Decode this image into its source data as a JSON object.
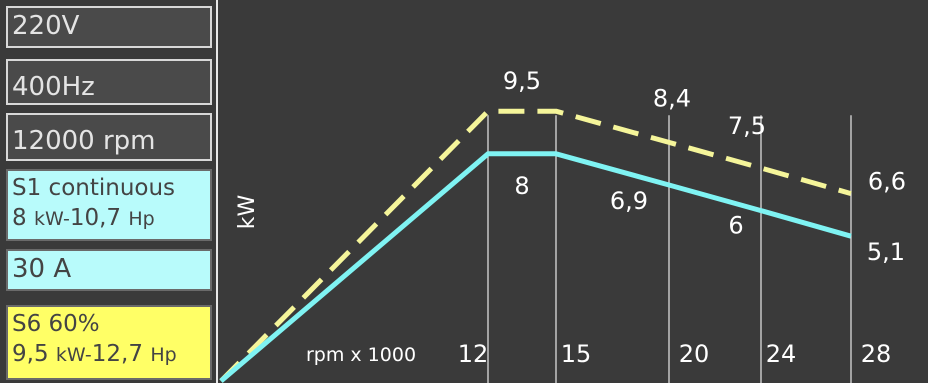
{
  "specs": {
    "voltage": "220V",
    "frequency": "400Hz",
    "speed": "12000 rpm",
    "s1_title": "S1 continuous",
    "s1_power_kw": "8",
    "s1_kw_unit": "kW-",
    "s1_power_hp": "10,7",
    "s1_hp_unit": "Hp",
    "current": "30 A",
    "s6_title": "S6 60%",
    "s6_power_kw": "9,5",
    "s6_kw_unit": "kW-",
    "s6_power_hp": "12,7",
    "s6_hp_unit": "Hp"
  },
  "colors": {
    "background": "#3a3a3a",
    "s1_fill": "#b8fbfb",
    "s6_fill": "#ffff66",
    "s1_line": "#7ff3f3",
    "s6_line": "#f5f59a",
    "grid": "#e8e8e8"
  },
  "chart_data": {
    "type": "line",
    "ylabel": "kW",
    "xlabel": "rpm x 1000",
    "x_ticks": [
      "12",
      "15",
      "20",
      "24",
      "28"
    ],
    "xlim": [
      0,
      28
    ],
    "ylim": [
      0,
      11
    ],
    "series": [
      {
        "style": "dashed",
        "color": "#f5f59a",
        "points": [
          [
            0,
            0
          ],
          [
            12,
            9.5
          ],
          [
            15,
            9.5
          ],
          [
            20,
            8.4
          ],
          [
            24,
            7.5
          ],
          [
            28,
            6.6
          ]
        ],
        "labels": [
          {
            "x": 13.5,
            "text": "9,5"
          },
          {
            "x": 20,
            "text": "8,4"
          },
          {
            "x": 24,
            "text": "7,5"
          },
          {
            "x": 28,
            "text": "6,6"
          }
        ]
      },
      {
        "style": "solid",
        "color": "#7ff3f3",
        "points": [
          [
            0,
            0
          ],
          [
            12,
            8
          ],
          [
            15,
            8
          ],
          [
            20,
            6.9
          ],
          [
            24,
            6
          ],
          [
            28,
            5.1
          ]
        ],
        "labels": [
          {
            "x": 13.5,
            "text": "8"
          },
          {
            "x": 20,
            "text": "6,9"
          },
          {
            "x": 24,
            "text": "6"
          },
          {
            "x": 28,
            "text": "5,1"
          }
        ]
      }
    ]
  }
}
